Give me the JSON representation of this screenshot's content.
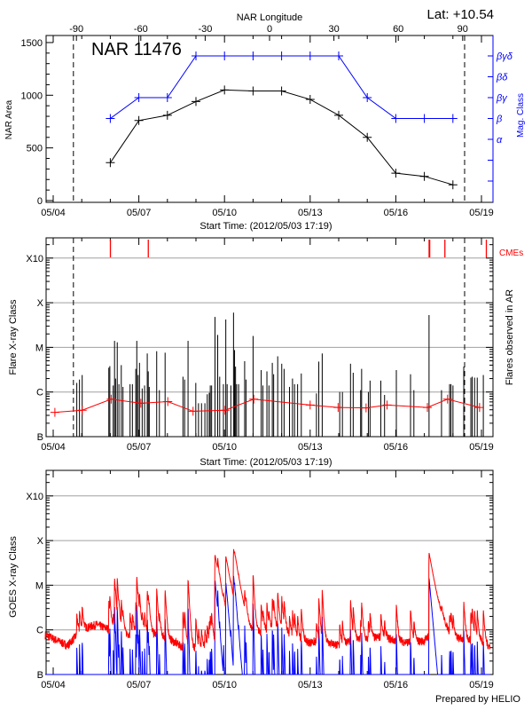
{
  "header": {
    "lat_label": "Lat: +10.54",
    "region_label": "NAR 11476",
    "top_axis_title": "NAR Longitude"
  },
  "footer": {
    "credit": "Prepared by HELIO"
  },
  "colors": {
    "area": "#000000",
    "mag_class": "#0000ff",
    "cme": "#ff0000",
    "ar_flare_level": "#ff0000",
    "goes_long": "#ff0000",
    "goes_short": "#0000ff",
    "grid": "#a0a0a0"
  },
  "chart_data": [
    {
      "type": "line",
      "xlabel": "Start Time: (2012/05/03 17:19)",
      "ylabel": "NAR Area",
      "y2label": "Mag. Class",
      "x_ticks": [
        "05/04",
        "05/07",
        "05/10",
        "05/13",
        "05/16",
        "05/19"
      ],
      "x_start": "2012-05-03 17:19",
      "ylim": [
        0,
        1570
      ],
      "y_ticks": [
        0,
        500,
        1000,
        1500
      ],
      "top_axis_ticks": [
        -90,
        -60,
        -30,
        0,
        30,
        60,
        90
      ],
      "y2_ticks": [
        "α",
        "β",
        "βγ",
        "βδ",
        "βγδ"
      ],
      "limb_crossings": [
        "2012-05-04 17:00",
        "2012-05-18 09:50"
      ],
      "x": [
        "2012-05-06 00:00",
        "2012-05-07 00:00",
        "2012-05-08 00:00",
        "2012-05-09 00:00",
        "2012-05-10 00:00",
        "2012-05-11 00:00",
        "2012-05-12 00:00",
        "2012-05-13 00:00",
        "2012-05-14 00:00",
        "2012-05-15 00:00",
        "2012-05-16 00:00",
        "2012-05-17 00:00",
        "2012-05-18 00:00"
      ],
      "series": [
        {
          "values": [
            360,
            760,
            810,
            940,
            1050,
            1040,
            1040,
            960,
            810,
            600,
            260,
            230,
            150
          ]
        },
        {
          "values": [
            "β",
            "βγ",
            "βγ",
            "βγδ",
            "βγδ",
            "βγδ",
            "βγδ",
            "βγδ",
            "βγδ",
            "βγ",
            "β",
            "β",
            "β"
          ]
        }
      ]
    },
    {
      "type": "bar",
      "xlabel": "Start Time: (2012/05/03 17:19)",
      "ylabel": "Flare X-ray Class",
      "y2label": "Flares observed in AR",
      "y_scale": "log",
      "y_ticks": [
        "B",
        "C",
        "M",
        "X",
        "X10"
      ],
      "x_ticks": [
        "05/04",
        "05/07",
        "05/10",
        "05/13",
        "05/16",
        "05/19"
      ],
      "grid": true,
      "cme_label": "CMEs",
      "cmes": [
        "2012-05-06 00:05",
        "2012-05-07 07:56",
        "2012-05-17 04:00",
        "2012-05-17 04:30",
        "2012-05-17 17:15",
        "2012-05-19 04:06"
      ],
      "limb_crossings": [
        "2012-05-04 17:00",
        "2012-05-18 09:50"
      ],
      "flares": [
        [
          "2012-05-04 19:50",
          "C1.6"
        ],
        [
          "2012-05-04 22:06",
          "C1.9"
        ],
        [
          "2012-05-05 00:22",
          "C2.4"
        ],
        [
          "2012-05-05 22:45",
          "C3.5"
        ],
        [
          "2012-05-05 23:36",
          "C3.8"
        ],
        [
          "2012-05-06 02:26",
          "C1.4"
        ],
        [
          "2012-05-06 03:34",
          "M1.4"
        ],
        [
          "2012-05-06 04:25",
          "C2.0"
        ],
        [
          "2012-05-06 05:50",
          "M1.3"
        ],
        [
          "2012-05-06 07:15",
          "C1.5"
        ],
        [
          "2012-05-06 09:14",
          "C4.0"
        ],
        [
          "2012-05-06 10:39",
          "C1.3"
        ],
        [
          "2012-05-06 16:36",
          "C1.5"
        ],
        [
          "2012-05-06 18:35",
          "C1.5"
        ],
        [
          "2012-05-06 21:25",
          "C3.3"
        ],
        [
          "2012-05-06 22:16",
          "M1.4"
        ],
        [
          "2012-05-06 23:24",
          "C2.4"
        ],
        [
          "2012-05-07 00:32",
          "C4.5"
        ],
        [
          "2012-05-07 02:48",
          "C1.2"
        ],
        [
          "2012-05-07 04:48",
          "C1.4"
        ],
        [
          "2012-05-07 07:04",
          "C7.3"
        ],
        [
          "2012-05-07 07:54",
          "C2.9"
        ],
        [
          "2012-05-07 08:45",
          "C1.3"
        ],
        [
          "2012-05-07 15:00",
          "C8.2"
        ],
        [
          "2012-05-07 17:16",
          "C1.1"
        ],
        [
          "2012-05-07 22:04",
          "C7.6"
        ],
        [
          "2012-05-08 13:05",
          "C2.2"
        ],
        [
          "2012-05-08 14:30",
          "C1.9"
        ],
        [
          "2012-05-08 17:21",
          "M1.4"
        ],
        [
          "2012-05-08 23:52",
          "C1.6"
        ],
        [
          "2012-05-09 02:08",
          "B5.6"
        ],
        [
          "2012-05-09 04:41",
          "B5.6"
        ],
        [
          "2012-05-09 07:31",
          "B5.6"
        ],
        [
          "2012-05-09 09:30",
          "B8.9"
        ],
        [
          "2012-05-09 11:11",
          "B9.6"
        ],
        [
          "2012-05-09 12:02",
          "C1.4"
        ],
        [
          "2012-05-09 13:10",
          "C1.4"
        ],
        [
          "2012-05-09 16:00",
          "M4.8"
        ],
        [
          "2012-05-09 18:17",
          "M1.9"
        ],
        [
          "2012-05-09 19:58",
          "C2.2"
        ],
        [
          "2012-05-09 23:05",
          "C1.5"
        ],
        [
          "2012-05-10 01:05",
          "M4.2"
        ],
        [
          "2012-05-10 02:13",
          "C1.5"
        ],
        [
          "2012-05-10 05:20",
          "C1.4"
        ],
        [
          "2012-05-10 07:35",
          "M6.0"
        ],
        [
          "2012-05-10 08:27",
          "C8.7"
        ],
        [
          "2012-05-10 09:17",
          "C3.7"
        ],
        [
          "2012-05-10 10:08",
          "C1.5"
        ],
        [
          "2012-05-10 11:50",
          "C1.5"
        ],
        [
          "2012-05-10 16:56",
          "C4.9"
        ],
        [
          "2012-05-10 18:04",
          "C1.9"
        ],
        [
          "2012-05-11 00:01",
          "M1.8"
        ],
        [
          "2012-05-11 06:50",
          "C3.1"
        ],
        [
          "2012-05-11 08:15",
          "C1.4"
        ],
        [
          "2012-05-11 11:39",
          "C2.9"
        ],
        [
          "2012-05-11 13:21",
          "C1.4"
        ],
        [
          "2012-05-11 16:11",
          "C4.5"
        ],
        [
          "2012-05-11 17:19",
          "C2.5"
        ],
        [
          "2012-05-11 20:43",
          "C6.3"
        ],
        [
          "2012-05-12 00:07",
          "C4.3"
        ],
        [
          "2012-05-12 02:05",
          "C3.3"
        ],
        [
          "2012-05-12 06:37",
          "C1.3"
        ],
        [
          "2012-05-12 09:10",
          "C2.0"
        ],
        [
          "2012-05-12 10:52",
          "C1.5"
        ],
        [
          "2012-05-12 13:26",
          "C1.5"
        ],
        [
          "2012-05-12 16:33",
          "C2.6"
        ],
        [
          "2012-05-13 05:18",
          "B9.3"
        ],
        [
          "2012-05-13 07:16",
          "C4.8"
        ],
        [
          "2012-05-13 10:08",
          "C7.3"
        ],
        [
          "2012-05-14 00:51",
          "C1.0"
        ],
        [
          "2012-05-14 03:07",
          "C1.0"
        ],
        [
          "2012-05-14 09:55",
          "C4.3"
        ],
        [
          "2012-05-14 12:11",
          "C2.7"
        ],
        [
          "2012-05-14 18:26",
          "C1.1"
        ],
        [
          "2012-05-14 19:16",
          "C3.3"
        ],
        [
          "2012-05-15 00:56",
          "C1.0"
        ],
        [
          "2012-05-15 02:21",
          "C1.8"
        ],
        [
          "2012-05-15 11:25",
          "C1.8"
        ],
        [
          "2012-05-15 14:33",
          "B8.6"
        ],
        [
          "2012-05-16 00:27",
          "C3.1"
        ],
        [
          "2012-05-16 12:22",
          "C2.5"
        ],
        [
          "2012-05-16 15:12",
          "C1.1"
        ],
        [
          "2012-05-17 03:56",
          "M5.3"
        ],
        [
          "2012-05-17 14:25",
          "C1.1"
        ],
        [
          "2012-05-17 21:13",
          "C1.5"
        ],
        [
          "2012-05-17 22:22",
          "C1.5"
        ],
        [
          "2012-05-18 00:03",
          "C1.4"
        ],
        [
          "2012-05-18 09:07",
          "C3.7"
        ],
        [
          "2012-05-18 15:04",
          "C2.1"
        ],
        [
          "2012-05-18 16:12",
          "C2.2"
        ],
        [
          "2012-05-18 18:12",
          "C2.1"
        ],
        [
          "2012-05-18 20:27",
          "C2.1"
        ],
        [
          "2012-05-19 01:34",
          "C2.4"
        ]
      ],
      "ar_flare_level": [
        [
          "2012-05-04 01:25",
          "B3.5"
        ],
        [
          "2012-05-05 00:22",
          "B3.9"
        ],
        [
          "2012-05-06 00:45",
          "B6.9"
        ],
        [
          "2012-05-07 01:40",
          "B5.6"
        ],
        [
          "2012-05-08 00:20",
          "B6.1"
        ],
        [
          "2012-05-08 21:35",
          "B3.7"
        ],
        [
          "2012-05-10 00:30",
          "B3.9"
        ],
        [
          "2012-05-11 00:35",
          "B6.9"
        ],
        [
          "2012-05-13 00:00",
          "B5.1"
        ],
        [
          "2012-05-13 23:30",
          "B4.5"
        ],
        [
          "2012-05-14 23:00",
          "B4.4"
        ],
        [
          "2012-05-15 16:40",
          "B5.1"
        ],
        [
          "2012-05-17 02:33",
          "B4.5"
        ],
        [
          "2012-05-17 19:30",
          "B6.9"
        ],
        [
          "2012-05-18 22:25",
          "B4.5"
        ]
      ]
    },
    {
      "type": "line",
      "ylabel": "GOES X-ray Class",
      "y_scale": "log",
      "y_ticks": [
        "B",
        "C",
        "M",
        "X",
        "X10"
      ],
      "x_ticks": [
        "05/04",
        "05/07",
        "05/10",
        "05/13",
        "05/16",
        "05/19"
      ],
      "grid": true,
      "background_long": [
        [
          "2012-05-03 18:00",
          "B7.5"
        ],
        [
          "2012-05-04 12:00",
          "B4.4"
        ],
        [
          "2012-05-05 00:00",
          "C1.0"
        ],
        [
          "2012-05-05 12:00",
          "C1.3"
        ],
        [
          "2012-05-06 00:00",
          "C1.0"
        ],
        [
          "2012-05-06 12:00",
          "B7.5"
        ],
        [
          "2012-05-07 00:00",
          "B9.4"
        ],
        [
          "2012-05-07 12:00",
          "B8.1"
        ],
        [
          "2012-05-08 00:00",
          "B6.5"
        ],
        [
          "2012-05-08 12:00",
          "B4.2"
        ],
        [
          "2012-05-09 00:00",
          "B3.8"
        ],
        [
          "2012-05-09 12:00",
          "B4.8"
        ],
        [
          "2012-05-10 00:00",
          "C1.0"
        ],
        [
          "2012-05-10 12:00",
          "B6.5"
        ],
        [
          "2012-05-11 00:00",
          "B7.5"
        ],
        [
          "2012-05-11 12:00",
          "C1.0"
        ],
        [
          "2012-05-12 00:00",
          "C1.2"
        ],
        [
          "2012-05-12 12:00",
          "B6.0"
        ],
        [
          "2012-05-13 00:00",
          "B5.2"
        ],
        [
          "2012-05-13 12:00",
          "B5.6"
        ],
        [
          "2012-05-14 00:00",
          "B4.4"
        ],
        [
          "2012-05-14 12:00",
          "B6.0"
        ],
        [
          "2012-05-15 00:00",
          "B6.0"
        ],
        [
          "2012-05-15 12:00",
          "B7.0"
        ],
        [
          "2012-05-16 00:00",
          "B5.6"
        ],
        [
          "2012-05-16 12:00",
          "B5.2"
        ],
        [
          "2012-05-17 00:00",
          "B5.6"
        ],
        [
          "2012-05-17 12:00",
          "C1.4"
        ],
        [
          "2012-05-18 00:00",
          "B6.5"
        ],
        [
          "2012-05-18 12:00",
          "B6.0"
        ],
        [
          "2012-05-19 00:00",
          "B5.6"
        ],
        [
          "2012-05-19 06:00",
          "B4.2"
        ]
      ]
    }
  ]
}
